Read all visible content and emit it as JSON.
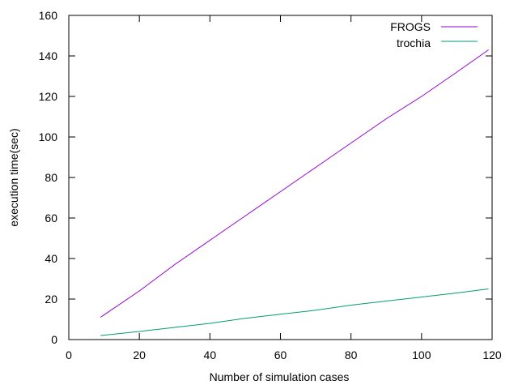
{
  "chart_data": {
    "type": "line",
    "title": "",
    "xlabel": "Number of simulation cases",
    "ylabel": "execution time(sec)",
    "xlim": [
      0,
      120
    ],
    "ylim": [
      0,
      160
    ],
    "xticks": [
      "0",
      "20",
      "40",
      "60",
      "80",
      "100",
      "120"
    ],
    "yticks": [
      "0",
      "20",
      "40",
      "60",
      "80",
      "100",
      "120",
      "140",
      "160"
    ],
    "grid": false,
    "legend_position": "top-right",
    "series": [
      {
        "name": "FROGS",
        "color": "#9400d3",
        "x": [
          9,
          20,
          30,
          40,
          50,
          60,
          70,
          80,
          90,
          100,
          110,
          119
        ],
        "y": [
          11,
          24,
          37,
          49,
          61,
          73,
          85,
          97,
          109,
          120,
          132,
          143
        ]
      },
      {
        "name": "trochia",
        "color": "#009e73",
        "x": [
          9,
          20,
          30,
          40,
          50,
          60,
          70,
          80,
          90,
          100,
          110,
          119
        ],
        "y": [
          2,
          4,
          6,
          8,
          10.5,
          12.5,
          14.5,
          17,
          19,
          21,
          23,
          25
        ]
      }
    ]
  }
}
